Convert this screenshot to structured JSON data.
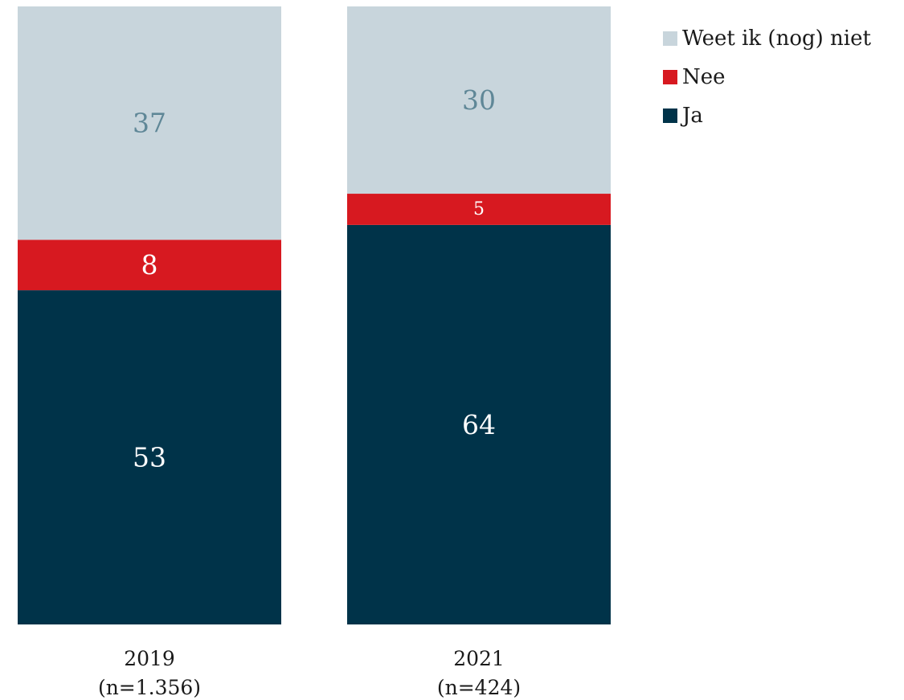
{
  "chart_data": {
    "type": "bar",
    "stacked": true,
    "normalized_percent": true,
    "categories": [
      [
        "2019",
        "(n=1.356)"
      ],
      [
        "2021",
        "(n=424)"
      ]
    ],
    "series": [
      {
        "name": "Ja",
        "values": [
          53,
          64
        ],
        "color": "#003349",
        "label_color": "#ffffff"
      },
      {
        "name": "Nee",
        "values": [
          8,
          5
        ],
        "color": "#d71920",
        "label_color": "#ffffff"
      },
      {
        "name": "Weet ik (nog) niet",
        "values": [
          37,
          30
        ],
        "color": "#c8d5dc",
        "label_color": "#5f8797"
      }
    ],
    "legend_order": [
      "Weet ik (nog) niet",
      "Nee",
      "Ja"
    ],
    "legend_position": "top-right",
    "ylim": [
      0,
      100
    ],
    "grid": false,
    "title": "",
    "xlabel": "",
    "ylabel": ""
  }
}
